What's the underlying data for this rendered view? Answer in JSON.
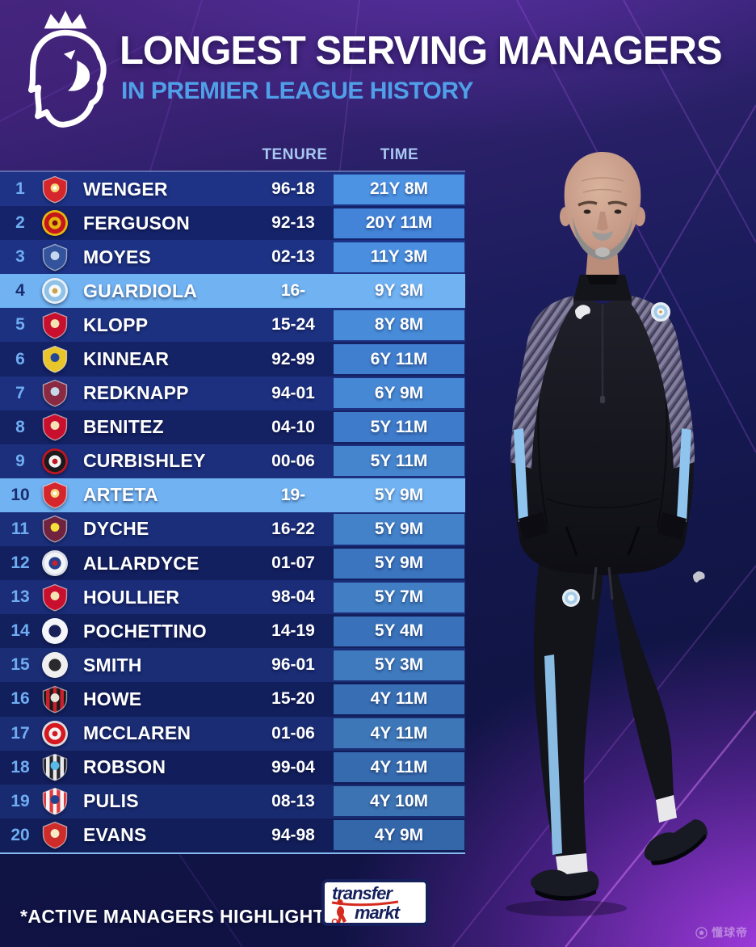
{
  "header": {
    "title": "LONGEST SERVING MANAGERS",
    "subtitle": "IN PREMIER LEAGUE HISTORY",
    "logo": "premier-league-lion"
  },
  "chart_data": {
    "type": "table",
    "title": "LONGEST SERVING MANAGERS",
    "subtitle": "IN PREMIER LEAGUE HISTORY",
    "columns": {
      "tenure": "TENURE",
      "time": "TIME"
    },
    "rows": [
      {
        "rank": "1",
        "club": "Arsenal",
        "manager": "WENGER",
        "tenure": "96-18",
        "time": "21Y 8M",
        "active": false,
        "crest": {
          "shape": "shield",
          "primary": "#D5262C",
          "secondary": "#F3D97E",
          "core": "#FFFFFF"
        }
      },
      {
        "rank": "2",
        "club": "Manchester United",
        "manager": "FERGUSON",
        "tenure": "92-13",
        "time": "20Y 11M",
        "active": false,
        "crest": {
          "shape": "circle",
          "ring": "#E8B60F",
          "primary": "#C4161C",
          "secondary": "#E8B60F",
          "core": "#7A0E12"
        }
      },
      {
        "rank": "3",
        "club": "Everton",
        "manager": "MOYES",
        "tenure": "02-13",
        "time": "11Y 3M",
        "active": false,
        "crest": {
          "shape": "shield",
          "primary": "#33539C",
          "secondary": "#C5D8F0"
        }
      },
      {
        "rank": "4",
        "club": "Manchester City",
        "manager": "GUARDIOLA",
        "tenure": "16-",
        "time": "9Y 3M",
        "active": true,
        "crest": {
          "shape": "circle",
          "ring": "#EAF0F6",
          "primary": "#8FC2E6",
          "secondary": "#F6F9FC",
          "core": "#C9A24A"
        }
      },
      {
        "rank": "5",
        "club": "Liverpool",
        "manager": "KLOPP",
        "tenure": "15-24",
        "time": "8Y 8M",
        "active": false,
        "crest": {
          "shape": "shield",
          "primary": "#C8102E",
          "secondary": "#F6E3B4"
        }
      },
      {
        "rank": "6",
        "club": "Wimbledon",
        "manager": "KINNEAR",
        "tenure": "92-99",
        "time": "6Y 11M",
        "active": false,
        "crest": {
          "shape": "shield",
          "primary": "#E8C52A",
          "secondary": "#23459A"
        }
      },
      {
        "rank": "7",
        "club": "West Ham United",
        "manager": "REDKNAPP",
        "tenure": "94-01",
        "time": "6Y 9M",
        "active": false,
        "crest": {
          "shape": "shield",
          "primary": "#8A2A42",
          "secondary": "#C6D9E8"
        }
      },
      {
        "rank": "8",
        "club": "Liverpool",
        "manager": "BENITEZ",
        "tenure": "04-10",
        "time": "5Y 11M",
        "active": false,
        "crest": {
          "shape": "shield",
          "primary": "#C8102E",
          "secondary": "#F6E3B4"
        }
      },
      {
        "rank": "9",
        "club": "Charlton Athletic",
        "manager": "CURBISHLEY",
        "tenure": "00-06",
        "time": "5Y 11M",
        "active": false,
        "crest": {
          "shape": "circle",
          "ring": "#C01622",
          "primary": "#1A1A1E",
          "secondary": "#F2F2F2",
          "core": "#C01622"
        }
      },
      {
        "rank": "10",
        "club": "Arsenal",
        "manager": "ARTETA",
        "tenure": "19-",
        "time": "5Y 9M",
        "active": true,
        "crest": {
          "shape": "shield",
          "primary": "#D5262C",
          "secondary": "#F3D97E",
          "core": "#FFFFFF"
        }
      },
      {
        "rank": "11",
        "club": "Burnley",
        "manager": "DYCHE",
        "tenure": "16-22",
        "time": "5Y 9M",
        "active": false,
        "crest": {
          "shape": "shield",
          "primary": "#70233F",
          "secondary": "#F2E23A"
        }
      },
      {
        "rank": "12",
        "club": "Bolton Wanderers",
        "manager": "ALLARDYCE",
        "tenure": "01-07",
        "time": "5Y 9M",
        "active": false,
        "crest": {
          "shape": "circle",
          "ring": "#D8DCE4",
          "primary": "#F2F4F8",
          "secondary": "#27418C",
          "core": "#C8202C"
        }
      },
      {
        "rank": "13",
        "club": "Liverpool",
        "manager": "HOULLIER",
        "tenure": "98-04",
        "time": "5Y 7M",
        "active": false,
        "crest": {
          "shape": "shield",
          "primary": "#C8102E",
          "secondary": "#F6E3B4"
        }
      },
      {
        "rank": "14",
        "club": "Tottenham Hotspur",
        "manager": "POCHETTINO",
        "tenure": "14-19",
        "time": "5Y 4M",
        "active": false,
        "crest": {
          "shape": "circle",
          "ring": "#F4F6FA",
          "primary": "#F4F6FA",
          "secondary": "#172157"
        }
      },
      {
        "rank": "15",
        "club": "Derby County",
        "manager": "SMITH",
        "tenure": "96-01",
        "time": "5Y 3M",
        "active": false,
        "crest": {
          "shape": "circle",
          "ring": "#EFEFEF",
          "primary": "#EFEFEF",
          "secondary": "#2A2A2E"
        }
      },
      {
        "rank": "16",
        "club": "AFC Bournemouth",
        "manager": "HOWE",
        "tenure": "15-20",
        "time": "4Y 11M",
        "active": false,
        "crest": {
          "shape": "shield",
          "primary": "#1A1A1C",
          "stripe": "#C8202C",
          "secondary": "#E8E4D8"
        }
      },
      {
        "rank": "17",
        "club": "Middlesbrough",
        "manager": "MCCLAREN",
        "tenure": "01-06",
        "time": "4Y 11M",
        "active": false,
        "crest": {
          "shape": "circle",
          "ring": "#DCDCE0",
          "primary": "#D51820",
          "secondary": "#F2F2F2",
          "core": "#D51820"
        }
      },
      {
        "rank": "18",
        "club": "Newcastle United",
        "manager": "ROBSON",
        "tenure": "99-04",
        "time": "4Y 11M",
        "active": false,
        "crest": {
          "shape": "shield",
          "primary": "#24242A",
          "stripe": "#E9E9EC",
          "secondary": "#58B8E8"
        }
      },
      {
        "rank": "19",
        "club": "Stoke City",
        "manager": "PULIS",
        "tenure": "08-13",
        "time": "4Y 10M",
        "active": false,
        "crest": {
          "shape": "shield",
          "primary": "#E03A3E",
          "stripe": "#F4F4F6",
          "secondary": "#22418E"
        }
      },
      {
        "rank": "20",
        "club": "Liverpool",
        "manager": "EVANS",
        "tenure": "94-98",
        "time": "4Y 9M",
        "active": false,
        "crest": {
          "shape": "shield",
          "primary": "#CE2C2A",
          "secondary": "#F5ECC8"
        }
      }
    ]
  },
  "footer": {
    "note": "*ACTIVE MANAGERS HIGHLIGHTED",
    "brand_top": "transfer",
    "brand_bottom": "markt"
  },
  "watermark": {
    "text": "懂球帝"
  },
  "colors": {
    "highlight": "#70B2F2",
    "row_a": "#1E3386",
    "row_b": "#15246B",
    "time_a": "#4C93E4",
    "time_b": "#4486DC",
    "rank": "#6FADF2",
    "rank_hl": "#1A2C6E",
    "subtitle": "#4FA0E8",
    "header_label": "#A8C8F2",
    "table_border": "#85B9F0",
    "brand_navy": "#16205C",
    "brand_red": "#D52B1E"
  }
}
